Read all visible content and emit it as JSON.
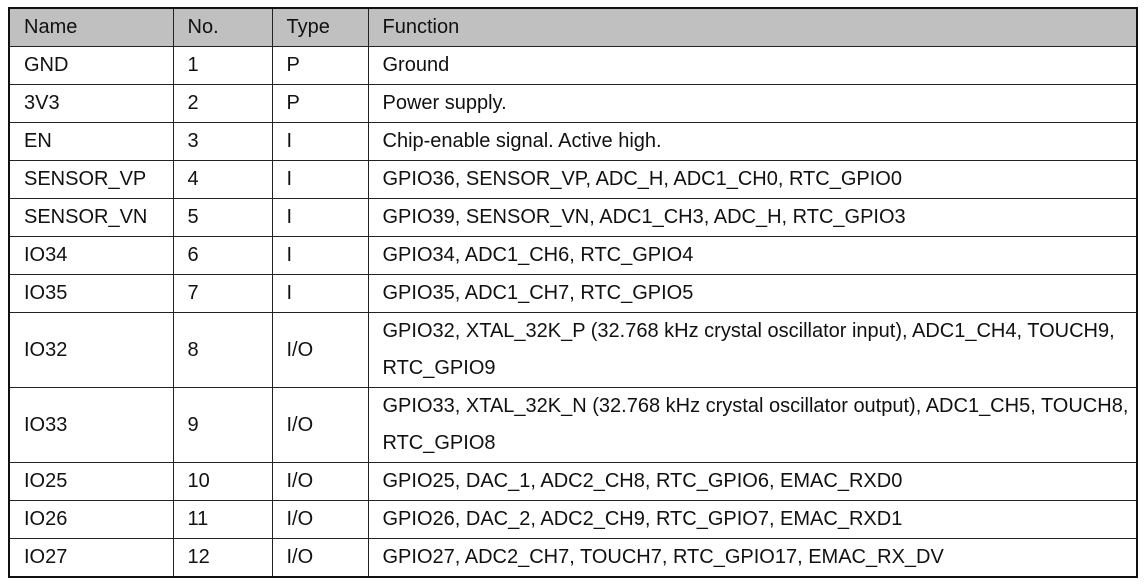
{
  "headers": [
    "Name",
    "No.",
    "Type",
    "Function"
  ],
  "rows": [
    [
      "GND",
      "1",
      "P",
      "Ground"
    ],
    [
      "3V3",
      "2",
      "P",
      "Power supply."
    ],
    [
      "EN",
      "3",
      "I",
      "Chip-enable signal. Active high."
    ],
    [
      "SENSOR_VP",
      "4",
      "I",
      "GPIO36, SENSOR_VP, ADC_H, ADC1_CH0, RTC_GPIO0"
    ],
    [
      "SENSOR_VN",
      "5",
      "I",
      "GPIO39, SENSOR_VN, ADC1_CH3, ADC_H, RTC_GPIO3"
    ],
    [
      "IO34",
      "6",
      "I",
      "GPIO34, ADC1_CH6, RTC_GPIO4"
    ],
    [
      "IO35",
      "7",
      "I",
      "GPIO35, ADC1_CH7, RTC_GPIO5"
    ],
    [
      "IO32",
      "8",
      "I/O",
      "GPIO32, XTAL_32K_P (32.768 kHz crystal oscillator input), ADC1_CH4, TOUCH9, RTC_GPIO9"
    ],
    [
      "IO33",
      "9",
      "I/O",
      "GPIO33, XTAL_32K_N (32.768 kHz crystal oscillator output), ADC1_CH5, TOUCH8, RTC_GPIO8"
    ],
    [
      "IO25",
      "10",
      "I/O",
      "GPIO25, DAC_1, ADC2_CH8, RTC_GPIO6, EMAC_RXD0"
    ],
    [
      "IO26",
      "11",
      "I/O",
      "GPIO26, DAC_2, ADC2_CH9, RTC_GPIO7, EMAC_RXD1"
    ],
    [
      "IO27",
      "12",
      "I/O",
      "GPIO27, ADC2_CH7, TOUCH7, RTC_GPIO17, EMAC_RX_DV"
    ]
  ]
}
